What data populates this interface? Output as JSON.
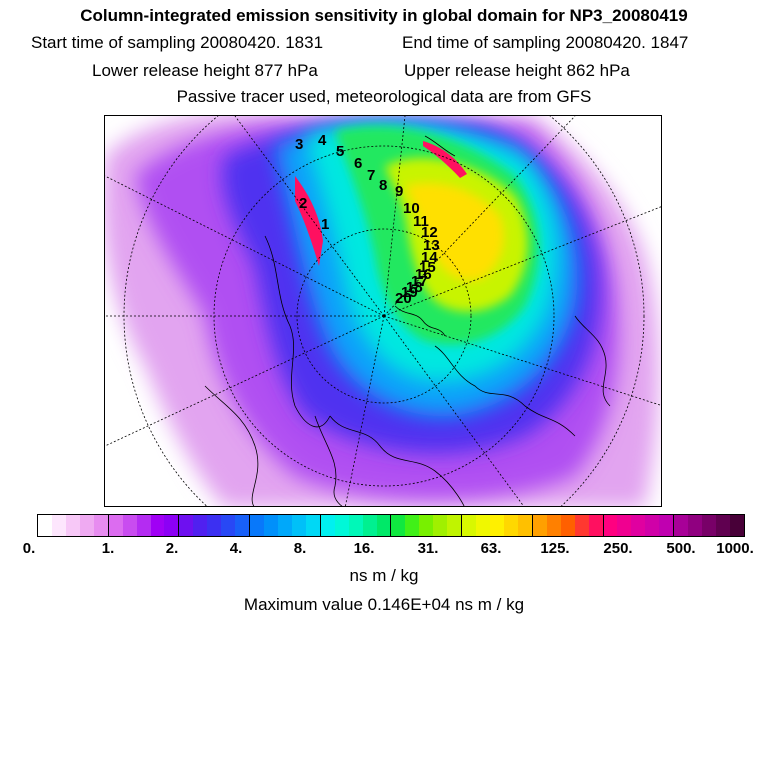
{
  "header": {
    "title": "Column-integrated emission sensitivity in global domain for NP3_20080419",
    "start_time": "Start time of sampling 20080420.  1831",
    "end_time": "End time of sampling 20080420.  1847",
    "lower_release": "Lower release height  877 hPa",
    "upper_release": "Upper release height  862 hPa",
    "tracer_note": "Passive tracer used, meteorological data are from GFS"
  },
  "map": {
    "projection": "polar stereographic, north pole",
    "trajectory_labels": [
      "1",
      "2",
      "3",
      "4",
      "5",
      "6",
      "7",
      "8",
      "9",
      "10",
      "11",
      "12",
      "13",
      "14",
      "15",
      "16",
      "17",
      "18",
      "19",
      "20"
    ]
  },
  "colorbar": {
    "tick_labels": [
      "0.",
      "1.",
      "2.",
      "4.",
      "8.",
      "16.",
      "31.",
      "63.",
      "125.",
      "250.",
      "500.",
      "1000."
    ],
    "unit": "ns m / kg",
    "colors": [
      "#ffffff",
      "#fde6fd",
      "#f7c8f7",
      "#efaaf2",
      "#e78cf0",
      "#dc6cf0",
      "#c94cf0",
      "#b42cf2",
      "#a000f5",
      "#8c00f5",
      "#6e10f0",
      "#5020f0",
      "#3c30f2",
      "#2848f5",
      "#1860f8",
      "#0878fa",
      "#0090fa",
      "#00a8fa",
      "#00c0f8",
      "#00d8f5",
      "#00f0f0",
      "#00f8d8",
      "#00f8b8",
      "#00f090",
      "#00e868",
      "#10e840",
      "#40f018",
      "#78f000",
      "#a0f000",
      "#c0f400",
      "#d8f800",
      "#f0f800",
      "#fff000",
      "#ffd800",
      "#ffc000",
      "#ffa000",
      "#ff8000",
      "#ff6000",
      "#ff3830",
      "#ff1060",
      "#ff0080",
      "#f00090",
      "#e000a0",
      "#d000a8",
      "#c000b0",
      "#a80098",
      "#900080",
      "#780068",
      "#600050",
      "#480038"
    ]
  },
  "max_value": "Maximum value  0.146E+04 ns m / kg"
}
